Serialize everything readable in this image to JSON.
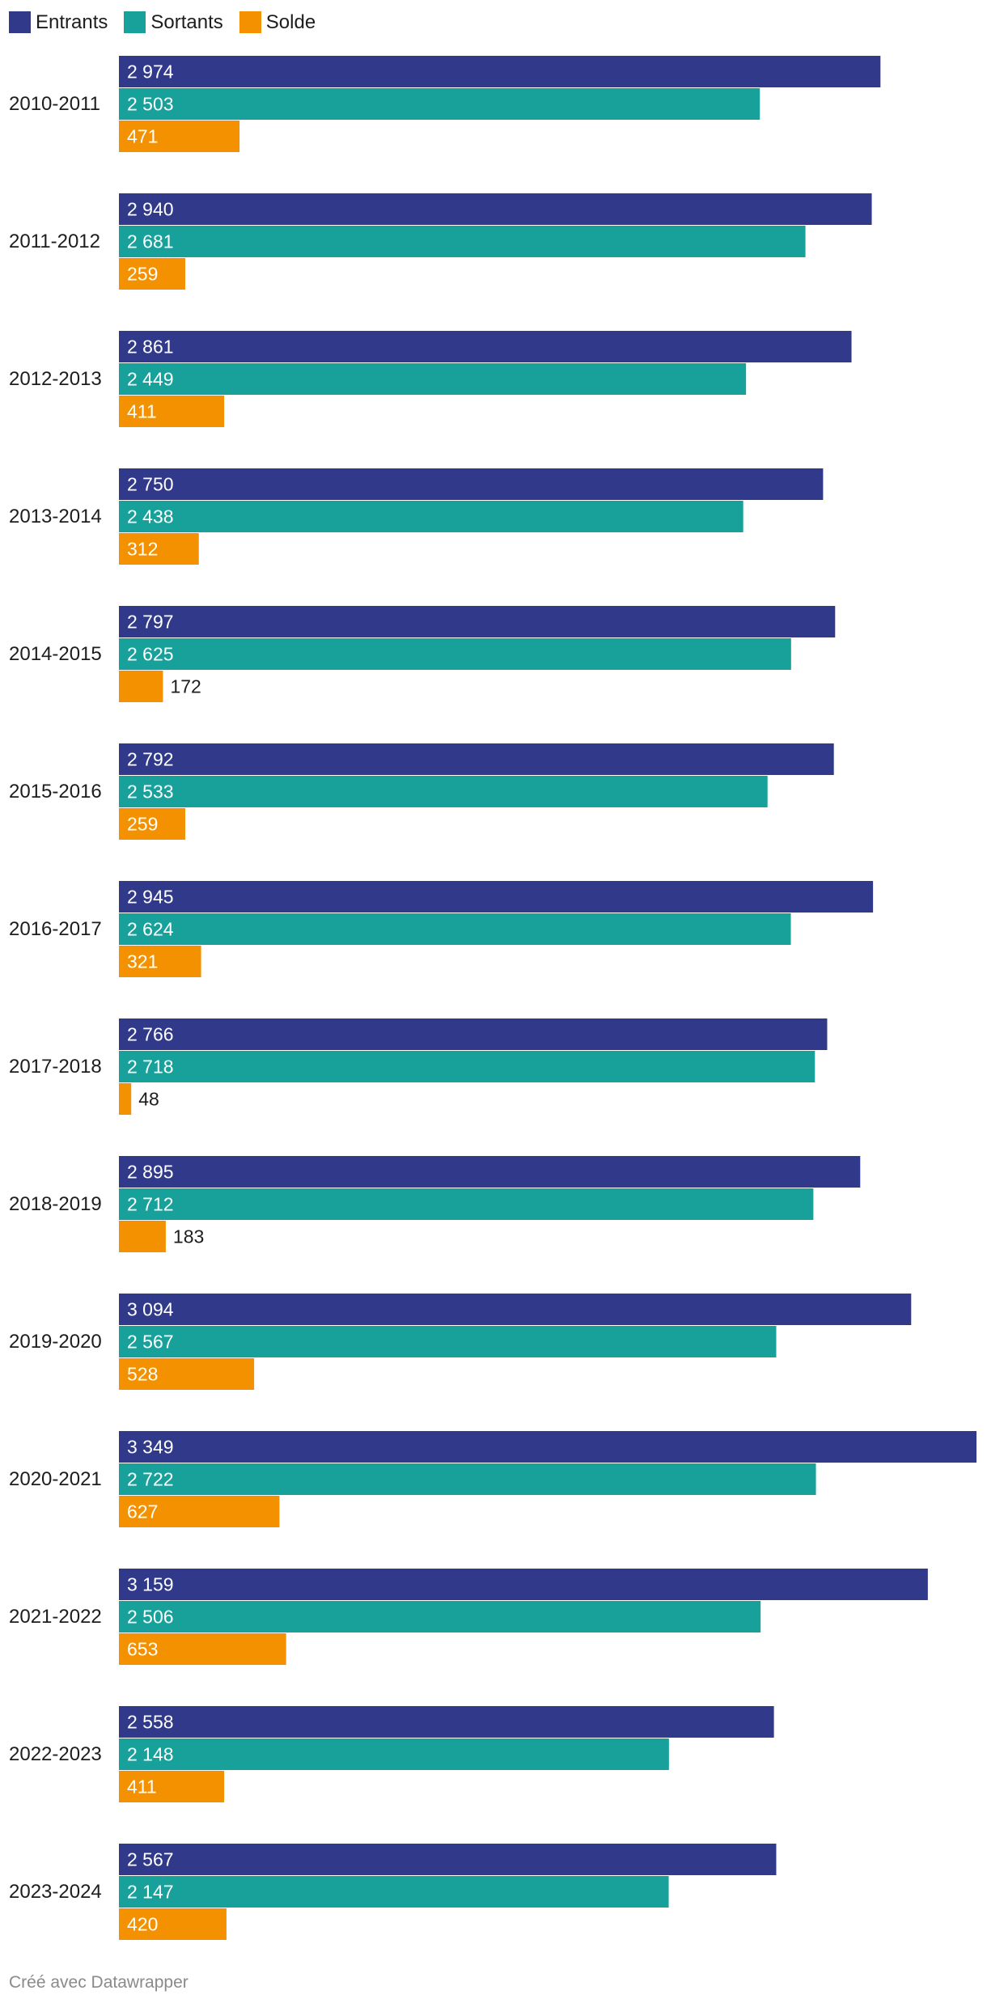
{
  "chart_data": {
    "type": "bar",
    "orientation": "horizontal",
    "legend": "top-left",
    "grid": false,
    "data_labels": true,
    "xlim": [
      0,
      3349
    ],
    "categories": [
      "2010-2011",
      "2011-2012",
      "2012-2013",
      "2013-2014",
      "2014-2015",
      "2015-2016",
      "2016-2017",
      "2017-2018",
      "2018-2019",
      "2019-2020",
      "2020-2021",
      "2021-2022",
      "2022-2023",
      "2023-2024"
    ],
    "series": [
      {
        "name": "Entrants",
        "color": "#313a8a",
        "values": [
          2974,
          2940,
          2861,
          2750,
          2797,
          2792,
          2945,
          2766,
          2895,
          3094,
          3349,
          3159,
          2558,
          2567
        ]
      },
      {
        "name": "Sortants",
        "color": "#18a19b",
        "values": [
          2503,
          2681,
          2449,
          2438,
          2625,
          2533,
          2624,
          2718,
          2712,
          2567,
          2722,
          2506,
          2148,
          2147
        ]
      },
      {
        "name": "Solde",
        "color": "#f39100",
        "values": [
          471,
          259,
          411,
          312,
          172,
          259,
          321,
          48,
          183,
          528,
          627,
          653,
          411,
          420
        ]
      }
    ]
  },
  "footer": {
    "credit": "Créé avec Datawrapper"
  }
}
